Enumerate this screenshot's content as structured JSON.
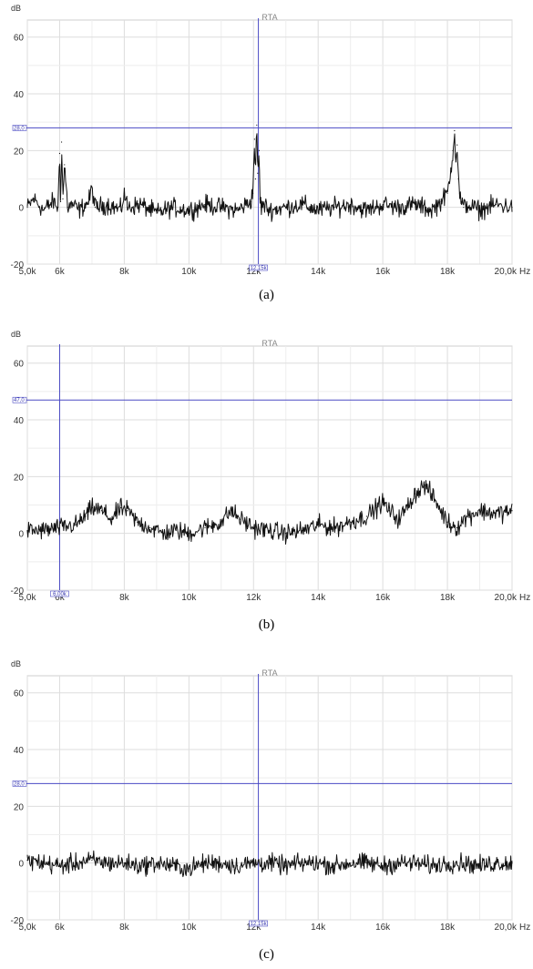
{
  "chart_data": [
    {
      "type": "line",
      "rta_label": "RTA",
      "y_unit": "dB",
      "x_unit": "Hz",
      "xlim": [
        5000,
        20000
      ],
      "ylim": [
        -20,
        66
      ],
      "x_ticks": [
        {
          "v": 5000,
          "label": "5,0k"
        },
        {
          "v": 6000,
          "label": "6k"
        },
        {
          "v": 8000,
          "label": "8k"
        },
        {
          "v": 10000,
          "label": "10k"
        },
        {
          "v": 12000,
          "label": "12k"
        },
        {
          "v": 14000,
          "label": "14k"
        },
        {
          "v": 16000,
          "label": "16k"
        },
        {
          "v": 18000,
          "label": "18k"
        },
        {
          "v": 20000,
          "label": "20,0k"
        }
      ],
      "y_ticks": [
        {
          "v": -20,
          "label": "-20"
        },
        {
          "v": 0,
          "label": "0"
        },
        {
          "v": 20,
          "label": "20"
        },
        {
          "v": 40,
          "label": "40"
        },
        {
          "v": 60,
          "label": "60"
        }
      ],
      "grid": true,
      "cursor": {
        "x": 12150,
        "y": 28,
        "x_label": "12,15k",
        "y_label": "28,0"
      },
      "caption": "(a)",
      "series": [
        {
          "x": [
            5000,
            5200,
            5500,
            5800,
            5950,
            6000,
            6030,
            6060,
            6100,
            6150,
            6250,
            6400,
            6600,
            6900,
            7000,
            7100,
            7500,
            7900,
            8000,
            8100,
            8500,
            9000,
            9500,
            10000,
            10500,
            11000,
            11500,
            11900,
            11980,
            12030,
            12060,
            12100,
            12130,
            12170,
            12200,
            12240,
            12300,
            12500,
            13000,
            13500,
            14000,
            14500,
            15000,
            15500,
            16000,
            16500,
            17000,
            17500,
            17800,
            18000,
            18100,
            18170,
            18220,
            18260,
            18300,
            18340,
            18380,
            18420,
            18500,
            18600,
            19000,
            19500,
            20000
          ],
          "y": [
            0,
            3,
            -1,
            2,
            0,
            19,
            2,
            23,
            3,
            15,
            0,
            1,
            -1,
            2,
            7,
            0,
            1,
            -1,
            5,
            0,
            1,
            -2,
            0,
            -1,
            1,
            0,
            -1,
            2,
            5,
            24,
            10,
            29,
            12,
            20,
            3,
            0,
            1,
            -1,
            0,
            1,
            -1,
            0,
            1,
            -1,
            1,
            0,
            1,
            -1,
            2,
            5,
            12,
            20,
            27,
            16,
            22,
            10,
            5,
            2,
            0,
            1,
            -1,
            1,
            0
          ]
        }
      ]
    },
    {
      "type": "line",
      "rta_label": "RTA",
      "y_unit": "dB",
      "x_unit": "Hz",
      "xlim": [
        5000,
        20000
      ],
      "ylim": [
        -20,
        66
      ],
      "x_ticks": [
        {
          "v": 5000,
          "label": "5,0k"
        },
        {
          "v": 6000,
          "label": "6k"
        },
        {
          "v": 8000,
          "label": "8k"
        },
        {
          "v": 10000,
          "label": "10k"
        },
        {
          "v": 12000,
          "label": "12k"
        },
        {
          "v": 14000,
          "label": "14k"
        },
        {
          "v": 16000,
          "label": "16k"
        },
        {
          "v": 18000,
          "label": "18k"
        },
        {
          "v": 20000,
          "label": "20,0k"
        }
      ],
      "y_ticks": [
        {
          "v": -20,
          "label": "-20"
        },
        {
          "v": 0,
          "label": "0"
        },
        {
          "v": 20,
          "label": "20"
        },
        {
          "v": 40,
          "label": "40"
        },
        {
          "v": 60,
          "label": "60"
        }
      ],
      "grid": true,
      "cursor": {
        "x": 6000,
        "y": 47,
        "x_label": "6,00k",
        "y_label": "47,0"
      },
      "caption": "(b)",
      "series": [
        {
          "x": [
            5000,
            5500,
            6000,
            6500,
            6800,
            7000,
            7300,
            7600,
            7900,
            8100,
            8400,
            8800,
            9200,
            9600,
            10000,
            10500,
            11000,
            11300,
            11600,
            12000,
            12500,
            13000,
            13500,
            14000,
            14500,
            15000,
            15500,
            15800,
            16000,
            16200,
            16500,
            16800,
            17000,
            17300,
            17600,
            18000,
            18300,
            18600,
            19000,
            19500,
            20000
          ],
          "y": [
            1,
            1,
            2,
            3,
            6,
            9,
            8,
            5,
            9,
            8,
            4,
            2,
            0,
            1,
            0,
            2,
            4,
            8,
            5,
            2,
            1,
            0,
            1,
            3,
            2,
            4,
            6,
            9,
            11,
            8,
            5,
            10,
            14,
            17,
            12,
            4,
            2,
            6,
            8,
            7,
            8
          ]
        }
      ]
    },
    {
      "type": "line",
      "rta_label": "RTA",
      "y_unit": "dB",
      "x_unit": "Hz",
      "xlim": [
        5000,
        20000
      ],
      "ylim": [
        -20,
        66
      ],
      "x_ticks": [
        {
          "v": 5000,
          "label": "5,0k"
        },
        {
          "v": 6000,
          "label": "6k"
        },
        {
          "v": 8000,
          "label": "8k"
        },
        {
          "v": 10000,
          "label": "10k"
        },
        {
          "v": 12000,
          "label": "12k"
        },
        {
          "v": 14000,
          "label": "14k"
        },
        {
          "v": 16000,
          "label": "16k"
        },
        {
          "v": 18000,
          "label": "18k"
        },
        {
          "v": 20000,
          "label": "20,0k"
        }
      ],
      "y_ticks": [
        {
          "v": -20,
          "label": "-20"
        },
        {
          "v": 0,
          "label": "0"
        },
        {
          "v": 20,
          "label": "20"
        },
        {
          "v": 40,
          "label": "40"
        },
        {
          "v": 60,
          "label": "60"
        }
      ],
      "grid": true,
      "cursor": {
        "x": 12150,
        "y": 28,
        "x_label": "12,15k",
        "y_label": "28,0"
      },
      "caption": "(c)",
      "series": [
        {
          "x": [
            5000,
            5500,
            6000,
            6500,
            7000,
            7500,
            8000,
            8500,
            9000,
            9500,
            10000,
            10500,
            11000,
            11500,
            12000,
            12500,
            13000,
            13500,
            14000,
            14500,
            15000,
            15500,
            16000,
            16500,
            17000,
            17500,
            18000,
            18500,
            19000,
            19500,
            20000
          ],
          "y": [
            1,
            0,
            -1,
            0,
            1,
            0,
            0,
            -1,
            0,
            -1,
            -2,
            0,
            0,
            -1,
            0,
            0,
            -1,
            0,
            0,
            -1,
            0,
            0,
            -1,
            0,
            0,
            -1,
            0,
            0,
            -1,
            0,
            0
          ]
        }
      ]
    }
  ]
}
